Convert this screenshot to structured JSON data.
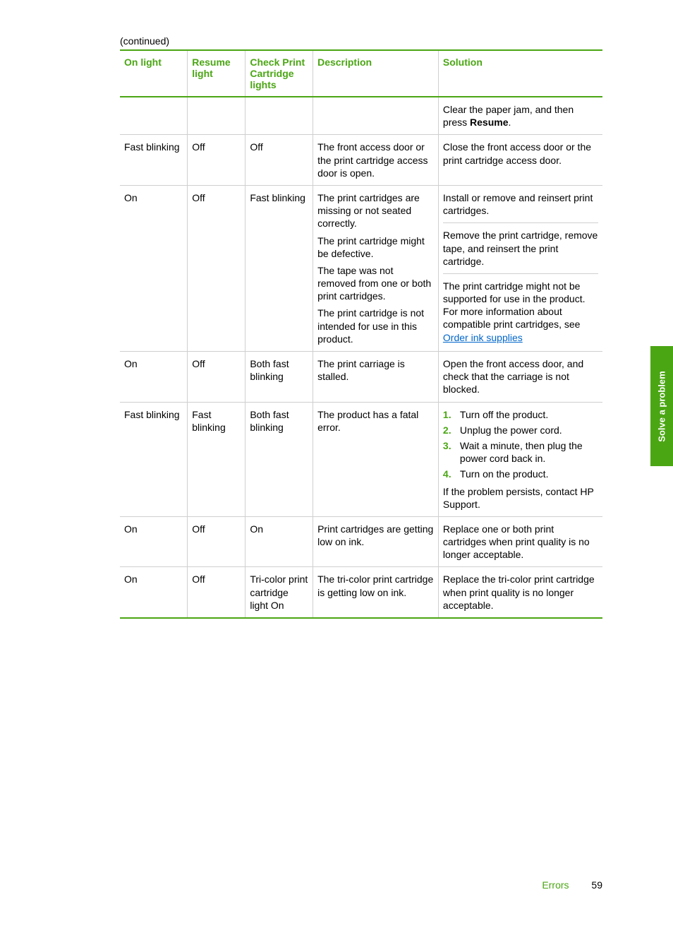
{
  "colors": {
    "brand": "#4ba614",
    "link": "#0066cc",
    "rule_light": "#cfcfcf",
    "text": "#000000",
    "background": "#ffffff"
  },
  "continued_label": "(continued)",
  "headers": {
    "c1": "On light",
    "c2": "Resume light",
    "c3": "Check Print Cartridge lights",
    "c4": "Description",
    "c5": "Solution"
  },
  "rows": {
    "r1": {
      "solution_pre": "Clear the paper jam, and then press ",
      "solution_bold": "Resume",
      "solution_post": "."
    },
    "r2": {
      "on": "Fast blinking",
      "resume": "Off",
      "check": "Off",
      "desc": "The front access door or the print cartridge access door is open.",
      "sol": "Close the front access door or the print cartridge access door."
    },
    "r3": {
      "on": "On",
      "resume": "Off",
      "check": "Fast blinking",
      "desc_p1": "The print cartridges are missing or not seated correctly.",
      "desc_p2": "The print cartridge might be defective.",
      "desc_p3": "The tape was not removed from one or both print cartridges.",
      "desc_p4": "The print cartridge is not intended for use in this product.",
      "sol_a": "Install or remove and reinsert print cartridges.",
      "sol_b": "Remove the print cartridge, remove tape, and reinsert the print cartridge.",
      "sol_c_pre": "The print cartridge might not be supported for use in the product. For more information about compatible print cartridges, see ",
      "sol_c_link": "Order ink supplies"
    },
    "r4": {
      "on": "On",
      "resume": "Off",
      "check": "Both fast blinking",
      "desc": "The print carriage is stalled.",
      "sol": "Open the front access door, and check that the carriage is not blocked."
    },
    "r5": {
      "on": "Fast blinking",
      "resume": "Fast blinking",
      "check": "Both fast blinking",
      "desc": "The product has a fatal error.",
      "steps": {
        "s1": "Turn off the product.",
        "s2": "Unplug the power cord.",
        "s3": "Wait a minute, then plug the power cord back in.",
        "s4": "Turn on the product."
      },
      "steps_n": {
        "n1": "1.",
        "n2": "2.",
        "n3": "3.",
        "n4": "4."
      },
      "after": "If the problem persists, contact HP Support."
    },
    "r6": {
      "on": "On",
      "resume": "Off",
      "check": "On",
      "desc": "Print cartridges are getting low on ink.",
      "sol": "Replace one or both print cartridges when print quality is no longer acceptable."
    },
    "r7": {
      "on": "On",
      "resume": "Off",
      "check": "Tri-color print cartridge light On",
      "desc": "The tri-color print cartridge is getting low on ink.",
      "sol": "Replace the tri-color print cartridge when print quality is no longer acceptable."
    }
  },
  "side_tab": "Solve a problem",
  "footer": {
    "label": "Errors",
    "page": "59"
  }
}
